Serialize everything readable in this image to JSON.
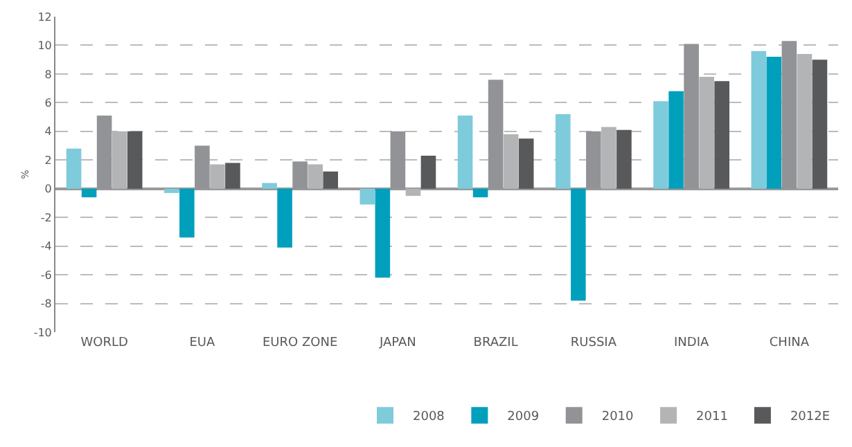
{
  "chart_data": {
    "type": "bar",
    "ylabel": "%",
    "categories": [
      "WORLD",
      "EUA",
      "EURO ZONE",
      "JAPAN",
      "BRAZIL",
      "RUSSIA",
      "INDIA",
      "CHINA"
    ],
    "series": [
      {
        "name": "2008",
        "color": "#7ecbdc",
        "values": [
          2.8,
          -0.3,
          0.4,
          -1.1,
          5.1,
          5.2,
          6.1,
          9.6
        ]
      },
      {
        "name": "2009",
        "color": "#00a0bd",
        "values": [
          -0.6,
          -3.4,
          -4.1,
          -6.2,
          -0.6,
          -7.8,
          6.8,
          9.2
        ]
      },
      {
        "name": "2010",
        "color": "#929396",
        "values": [
          5.1,
          3.0,
          1.9,
          4.0,
          7.6,
          4.0,
          10.1,
          10.3
        ]
      },
      {
        "name": "2011",
        "color": "#b3b4b6",
        "values": [
          4.0,
          1.7,
          1.7,
          -0.5,
          3.8,
          4.3,
          7.8,
          9.4
        ]
      },
      {
        "name": "2012E",
        "color": "#58595b",
        "values": [
          4.0,
          1.8,
          1.2,
          2.3,
          3.5,
          4.1,
          7.5,
          9.0
        ]
      }
    ],
    "ylim": [
      -10,
      12
    ],
    "yticks": [
      -10,
      -8,
      -6,
      -4,
      -2,
      0,
      2,
      4,
      6,
      8,
      10,
      12
    ],
    "grid": "y",
    "legend": "bottom right"
  }
}
